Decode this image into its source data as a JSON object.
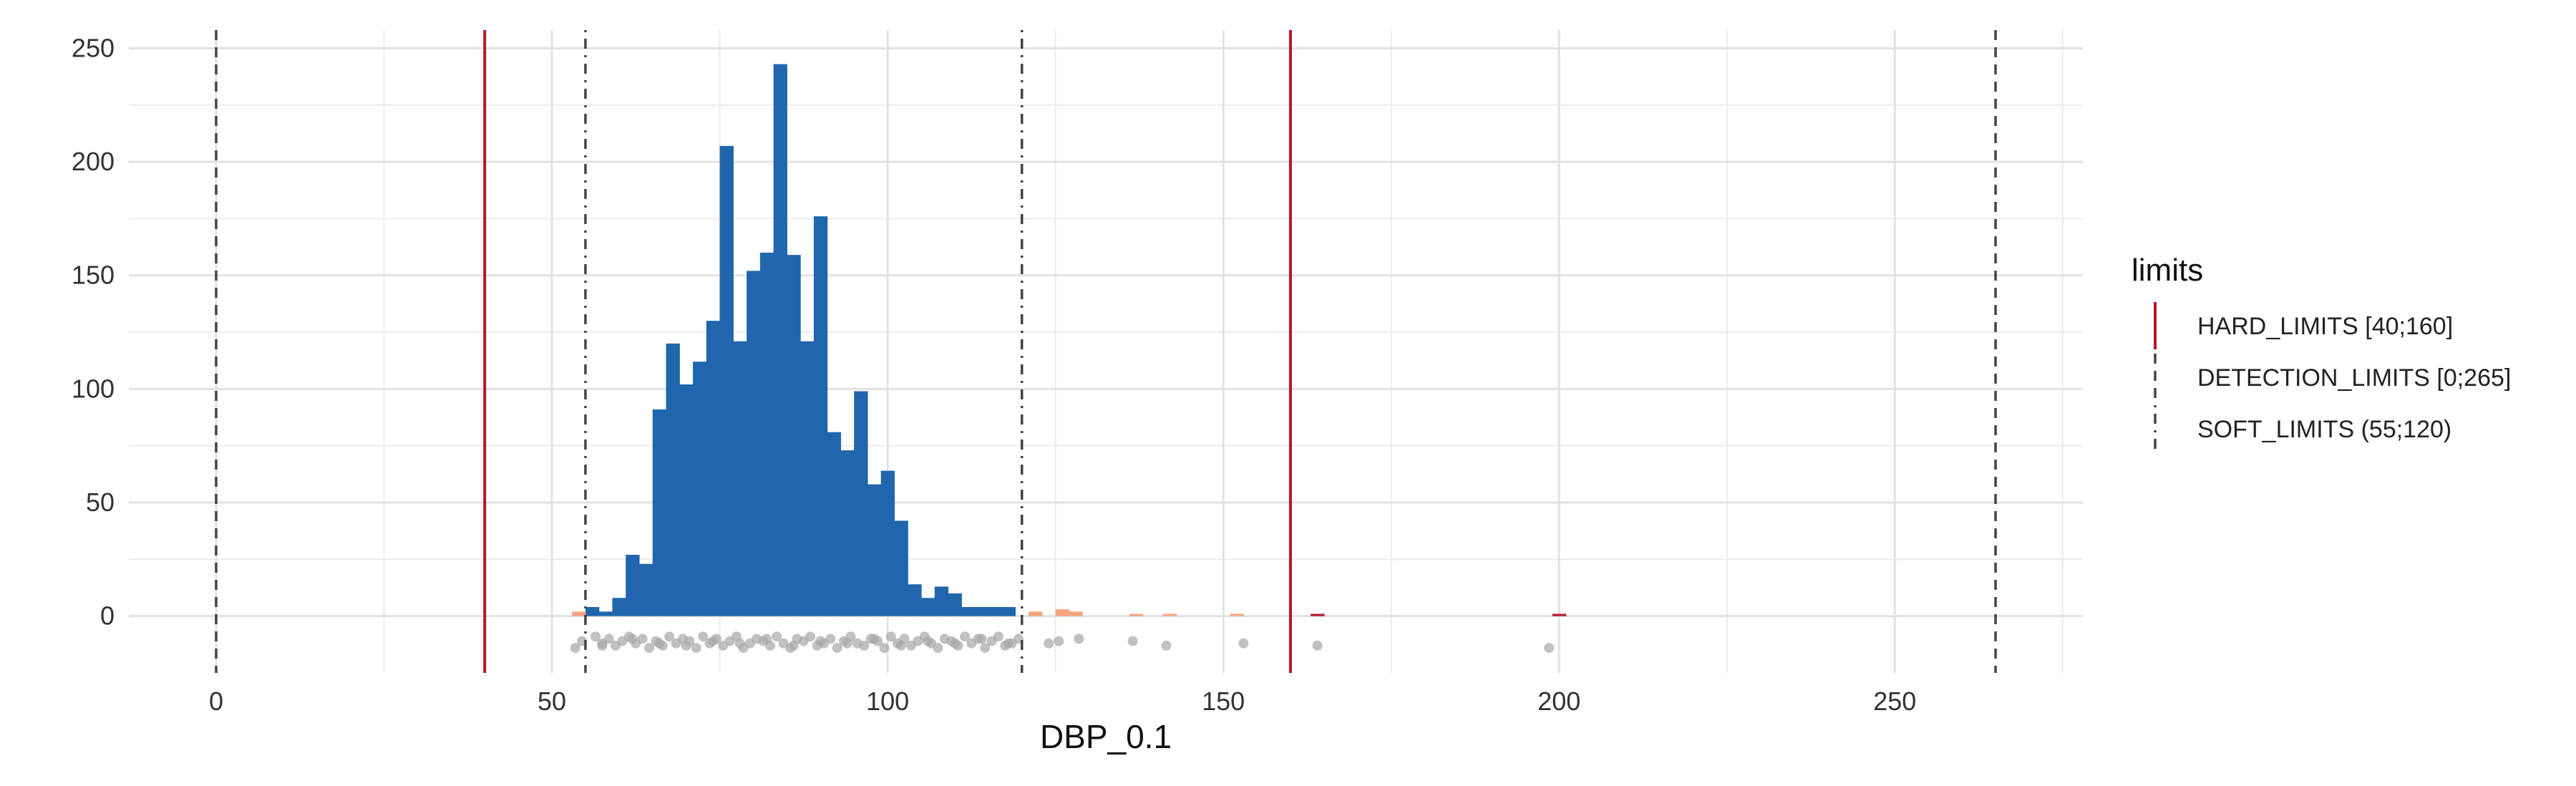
{
  "chart_data": {
    "type": "bar",
    "title": "",
    "xlabel": "DBP_0.1",
    "ylabel": "",
    "xlim": [
      -13,
      278
    ],
    "ylim": [
      -25,
      258
    ],
    "x_ticks": [
      0,
      50,
      100,
      150,
      200,
      250
    ],
    "y_ticks": [
      0,
      50,
      100,
      150,
      200,
      250
    ],
    "grid": true,
    "bin_width": 2,
    "bins_within_soft_limits": {
      "color": "#2166ac",
      "x_start": [
        55,
        57,
        59,
        61,
        63,
        65,
        67,
        69,
        71,
        73,
        75,
        77,
        79,
        81,
        83,
        85,
        87,
        89,
        91,
        93,
        95,
        97,
        99,
        101,
        103,
        105,
        107,
        109,
        111,
        113,
        115,
        117
      ],
      "values": [
        4,
        2,
        8,
        27,
        23,
        91,
        120,
        102,
        112,
        130,
        207,
        121,
        152,
        160,
        243,
        159,
        121,
        176,
        81,
        73,
        99,
        58,
        64,
        42,
        14,
        8,
        13,
        10,
        4,
        4,
        4,
        4
      ]
    },
    "bins_outside_soft_limits": {
      "color": "#f4a582",
      "x_start": [
        53,
        121,
        125,
        127,
        136,
        141,
        151
      ],
      "values": [
        2,
        2,
        3,
        2,
        1,
        1,
        1
      ]
    },
    "bins_outside_hard_limits": {
      "color": "#b2182b",
      "x_start": [
        163,
        199
      ],
      "values": [
        1,
        1
      ]
    },
    "jitter_points": {
      "color": "#a6a6a6",
      "x": [
        53.5,
        54.5,
        56.5,
        57.5,
        58.5,
        59.5,
        60.5,
        61.5,
        62.5,
        63.5,
        64.5,
        65.5,
        66.5,
        67.5,
        68.5,
        69.5,
        70.5,
        71.5,
        72.5,
        73.5,
        74.5,
        75.5,
        76.5,
        77.5,
        78.5,
        79.5,
        80.5,
        81.5,
        82.5,
        83.5,
        84.5,
        85.5,
        86.5,
        87.5,
        88.5,
        89.5,
        90.5,
        91.5,
        92.5,
        93.5,
        94.5,
        95.5,
        96.5,
        97.5,
        98.5,
        99.5,
        100.5,
        101.5,
        102.5,
        103.5,
        104.5,
        105.5,
        106.5,
        107.5,
        108.5,
        109.5,
        110.5,
        111.5,
        112.5,
        113.5,
        114.5,
        115.5,
        116.5,
        117.5,
        118.5,
        119.5,
        124,
        125.5,
        128.5,
        136.5,
        141.5,
        153,
        164,
        198.5,
        57.5,
        62,
        66,
        70,
        74,
        78,
        82,
        86,
        90,
        94,
        98,
        102,
        106,
        110,
        114,
        118
      ],
      "y": [
        -14,
        -11,
        -9,
        -12,
        -10,
        -13,
        -11,
        -9,
        -12,
        -10,
        -14,
        -11,
        -13,
        -9,
        -12,
        -10,
        -11,
        -14,
        -9,
        -12,
        -10,
        -13,
        -11,
        -9,
        -14,
        -12,
        -10,
        -11,
        -13,
        -9,
        -12,
        -14,
        -10,
        -11,
        -9,
        -13,
        -12,
        -10,
        -14,
        -11,
        -9,
        -12,
        -13,
        -10,
        -11,
        -14,
        -9,
        -12,
        -10,
        -13,
        -11,
        -9,
        -12,
        -14,
        -10,
        -11,
        -13,
        -9,
        -12,
        -10,
        -14,
        -11,
        -9,
        -13,
        -12,
        -10,
        -12,
        -11,
        -10,
        -11,
        -13,
        -12,
        -13,
        -14,
        -13,
        -10,
        -12,
        -13,
        -11,
        -12,
        -10,
        -13,
        -11,
        -12,
        -10,
        -13,
        -11,
        -12,
        -10,
        -12
      ]
    },
    "vlines": [
      {
        "x": 40,
        "limit": "HARD_LIMITS",
        "style": "solid",
        "color": "#b2182b"
      },
      {
        "x": 160,
        "limit": "HARD_LIMITS",
        "style": "solid",
        "color": "#b2182b"
      },
      {
        "x": 0,
        "limit": "DETECTION_LIMITS",
        "style": "dashed",
        "color": "#444444"
      },
      {
        "x": 265,
        "limit": "DETECTION_LIMITS",
        "style": "dashed",
        "color": "#444444"
      },
      {
        "x": 55,
        "limit": "SOFT_LIMITS",
        "style": "dotdash",
        "color": "#444444"
      },
      {
        "x": 120,
        "limit": "SOFT_LIMITS",
        "style": "dotdash",
        "color": "#444444"
      }
    ],
    "legend": {
      "title": "limits",
      "position": "right",
      "entries": [
        {
          "label": "HARD_LIMITS [40;160]",
          "style": "solid",
          "color": "#b2182b"
        },
        {
          "label": "DETECTION_LIMITS [0;265]",
          "style": "dashed",
          "color": "#444444"
        },
        {
          "label": "SOFT_LIMITS (55;120)",
          "style": "dotdash",
          "color": "#444444"
        }
      ]
    }
  }
}
